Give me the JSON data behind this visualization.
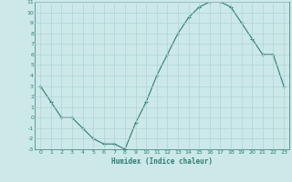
{
  "x": [
    0,
    1,
    2,
    3,
    4,
    5,
    6,
    7,
    8,
    9,
    10,
    11,
    12,
    13,
    14,
    15,
    16,
    17,
    18,
    19,
    20,
    21,
    22,
    23
  ],
  "y": [
    3,
    1.5,
    0,
    0,
    -1,
    -2,
    -2.5,
    -2.5,
    -3,
    -0.5,
    1.5,
    4,
    6,
    8,
    9.5,
    10.5,
    11,
    11,
    10.5,
    9,
    7.5,
    6,
    6,
    3
  ],
  "xlabel": "Humidex (Indice chaleur)",
  "line_color": "#2e7d6e",
  "marker": "+",
  "bg_color": "#cce8e8",
  "grid_color": "#b0d4d4",
  "tick_color": "#2e7d6e",
  "label_color": "#2e7d6e",
  "ylim": [
    -3,
    11
  ],
  "xlim": [
    -0.5,
    23.5
  ],
  "yticks": [
    -3,
    -2,
    -1,
    0,
    1,
    2,
    3,
    4,
    5,
    6,
    7,
    8,
    9,
    10,
    11
  ],
  "xticks": [
    0,
    1,
    2,
    3,
    4,
    5,
    6,
    7,
    8,
    9,
    10,
    11,
    12,
    13,
    14,
    15,
    16,
    17,
    18,
    19,
    20,
    21,
    22,
    23
  ]
}
